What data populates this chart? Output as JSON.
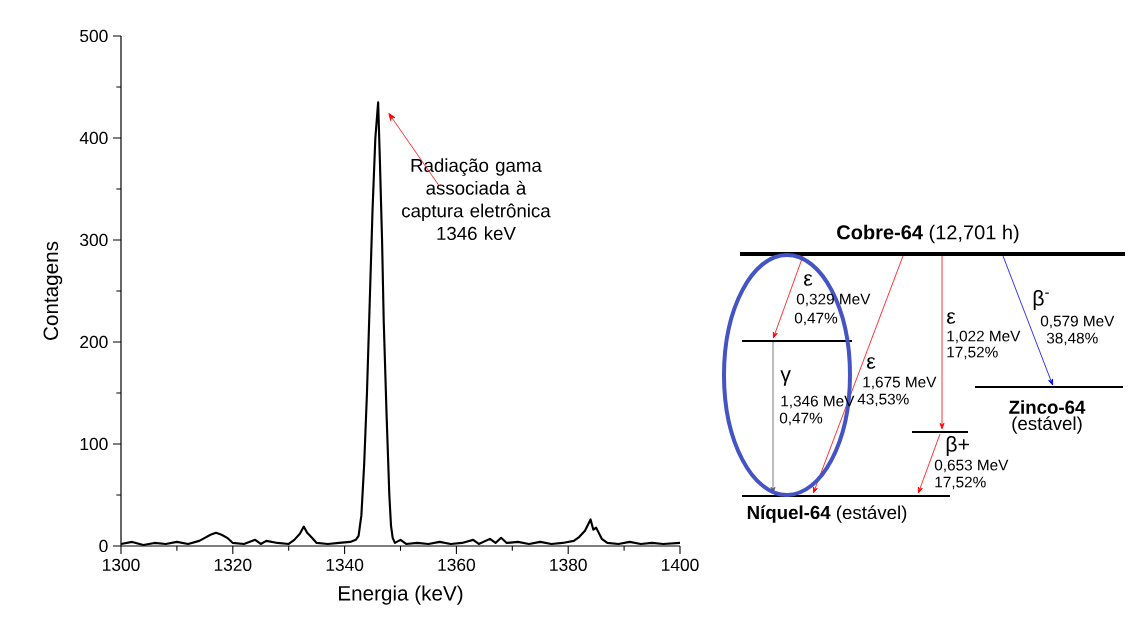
{
  "chart_data": [
    {
      "type": "line",
      "xlabel": "Energia (keV)",
      "ylabel": "Contagens",
      "color": "#000000",
      "grid": false,
      "marker": "none",
      "line_style": "solid",
      "xlim": [
        1300,
        1400
      ],
      "xticks": [
        1300,
        1320,
        1340,
        1360,
        1380,
        1400
      ],
      "ylim": [
        0,
        500
      ],
      "yticks": [
        0,
        100,
        200,
        300,
        400,
        500
      ],
      "x": [
        1300,
        1302,
        1304,
        1306,
        1308,
        1310,
        1312,
        1314,
        1315,
        1316,
        1317,
        1318,
        1319,
        1320,
        1322,
        1324,
        1325,
        1326,
        1328,
        1330,
        1331,
        1332,
        1332.7,
        1333.3,
        1334,
        1335,
        1337,
        1339,
        1341,
        1342,
        1342.5,
        1343,
        1343.5,
        1344,
        1344.5,
        1345,
        1345.5,
        1346,
        1346.3,
        1346.7,
        1347,
        1347.5,
        1348,
        1348.3,
        1348.6,
        1349,
        1350,
        1351,
        1353,
        1355,
        1357,
        1359,
        1361,
        1363,
        1364,
        1366,
        1367,
        1368,
        1369,
        1371,
        1373,
        1375,
        1377,
        1379,
        1381,
        1382,
        1383,
        1384,
        1384.5,
        1385,
        1386,
        1387,
        1389,
        1391,
        1393,
        1395,
        1397,
        1400
      ],
      "values": [
        2,
        4,
        1,
        3,
        2,
        4,
        2,
        5,
        8,
        11,
        13,
        11,
        8,
        3,
        2,
        6,
        2,
        5,
        3,
        2,
        6,
        12,
        19,
        13,
        9,
        3,
        2,
        3,
        4,
        6,
        10,
        30,
        80,
        150,
        240,
        330,
        400,
        435,
        380,
        300,
        220,
        130,
        50,
        20,
        8,
        3,
        6,
        2,
        3,
        2,
        4,
        2,
        3,
        6,
        2,
        7,
        3,
        8,
        3,
        4,
        2,
        4,
        2,
        3,
        5,
        9,
        15,
        26,
        16,
        18,
        7,
        3,
        2,
        4,
        2,
        3,
        2,
        3
      ],
      "annotations": [
        "Radiação gama associada à captura eletrônica 1346 keV"
      ]
    },
    {
      "type": "other",
      "annotations": [
        "**Cobre-64** (12,701 h)",
        "ε",
        "0,329 MeV",
        "0,47%",
        "γ",
        "1,346 MeV",
        "0,47%",
        "ε",
        "1,675 MeV",
        "43,53%",
        "ε",
        "1,022 MeV",
        "17,52%",
        "β$^{-}$",
        "0,579 MeV",
        "38,48%",
        "β+",
        "0,653 MeV",
        "17,52%",
        "**Zinco-64**",
        "(estável)",
        "**Níquel-64** (estável)"
      ]
    }
  ]
}
